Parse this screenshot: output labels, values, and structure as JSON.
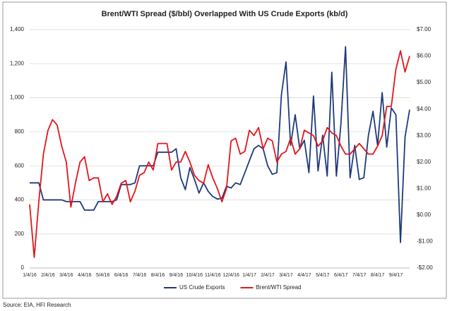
{
  "chart_data": {
    "type": "line",
    "title": "Brent/WTI Spread ($/bbl) Overlapped With US Crude Exports (kb/d)",
    "source": "Source: EIA, HFI Research",
    "categories": [
      "1/4/16",
      null,
      null,
      null,
      "2/4/16",
      null,
      null,
      null,
      "3/4/16",
      null,
      null,
      null,
      "4/4/16",
      null,
      null,
      null,
      "5/4/16",
      null,
      null,
      null,
      "6/4/16",
      null,
      null,
      null,
      "7/4/16",
      null,
      null,
      null,
      "8/4/16",
      null,
      null,
      null,
      "9/4/16",
      null,
      null,
      null,
      "10/4/16",
      null,
      null,
      null,
      "11/4/16",
      null,
      null,
      null,
      "12/4/16",
      null,
      null,
      null,
      "1/4/17",
      null,
      null,
      null,
      "2/4/17",
      null,
      null,
      null,
      "3/4/17",
      null,
      null,
      null,
      "4/4/17",
      null,
      null,
      null,
      "5/4/17",
      null,
      null,
      null,
      "6/4/17",
      null,
      null,
      null,
      "7/4/17",
      null,
      null,
      null,
      "8/4/17",
      null,
      null,
      null,
      "9/4/17",
      null,
      null,
      null
    ],
    "series": [
      {
        "name": "US Crude Exports",
        "color": "#1f3a7a",
        "axis": "y",
        "values": [
          500,
          500,
          500,
          400,
          400,
          400,
          400,
          400,
          390,
          390,
          390,
          390,
          340,
          340,
          340,
          390,
          390,
          390,
          390,
          400,
          490,
          490,
          490,
          500,
          600,
          600,
          600,
          600,
          680,
          680,
          680,
          680,
          700,
          530,
          460,
          590,
          520,
          440,
          500,
          450,
          420,
          405,
          410,
          480,
          470,
          500,
          490,
          560,
          630,
          700,
          720,
          700,
          600,
          550,
          560,
          1020,
          1210,
          720,
          900,
          700,
          750,
          560,
          1010,
          570,
          780,
          540,
          1150,
          540,
          850,
          1300,
          530,
          720,
          520,
          530,
          780,
          920,
          720,
          1030,
          710,
          940,
          900,
          150,
          770,
          930
        ]
      },
      {
        "name": "Brent/WTI Spread",
        "color": "#e3161b",
        "axis": "y2",
        "values": [
          0.4,
          -1.6,
          0.5,
          2.3,
          3.2,
          3.6,
          3.4,
          2.6,
          2.0,
          0.3,
          1.2,
          2.0,
          2.2,
          1.3,
          1.4,
          1.4,
          0.5,
          0.8,
          0.4,
          0.7,
          1.2,
          1.3,
          0.5,
          0.9,
          1.5,
          1.6,
          2.0,
          1.7,
          2.7,
          2.7,
          2.7,
          1.7,
          2.0,
          2.0,
          2.4,
          2.0,
          1.5,
          1.3,
          1.2,
          1.9,
          1.4,
          1.0,
          0.5,
          1.0,
          2.8,
          2.9,
          2.3,
          2.4,
          3.2,
          3.0,
          3.3,
          2.5,
          2.9,
          2.8,
          2.0,
          2.3,
          2.4,
          2.9,
          2.3,
          2.5,
          3.2,
          3.1,
          3.0,
          2.6,
          2.8,
          3.3,
          3.1,
          3.0,
          2.6,
          2.3,
          2.3,
          2.5,
          2.7,
          2.5,
          2.3,
          2.3,
          2.6,
          3.0,
          4.1,
          4.1,
          5.5,
          6.2,
          5.4,
          6.0
        ]
      }
    ],
    "ylim": [
      0,
      1400
    ],
    "yticks": [
      0,
      200,
      400,
      600,
      800,
      {
        "value": 1000,
        "label": "1,000"
      },
      {
        "value": 1200,
        "label": "1,200"
      },
      {
        "value": 1400,
        "label": "1,400"
      }
    ],
    "y2lim": [
      -2,
      7
    ],
    "y2ticks": [
      {
        "value": -2,
        "label": "-$2.00"
      },
      {
        "value": -1,
        "label": "-$1.00"
      },
      {
        "value": 0,
        "label": "$0.00"
      },
      {
        "value": 1,
        "label": "$1.00"
      },
      {
        "value": 2,
        "label": "$2.00"
      },
      {
        "value": 3,
        "label": "$3.00"
      },
      {
        "value": 4,
        "label": "$4.00"
      },
      {
        "value": 5,
        "label": "$5.00"
      },
      {
        "value": 6,
        "label": "$6.00"
      },
      {
        "value": 7,
        "label": "$7.00"
      }
    ],
    "grid": true,
    "legend": "bottom"
  }
}
